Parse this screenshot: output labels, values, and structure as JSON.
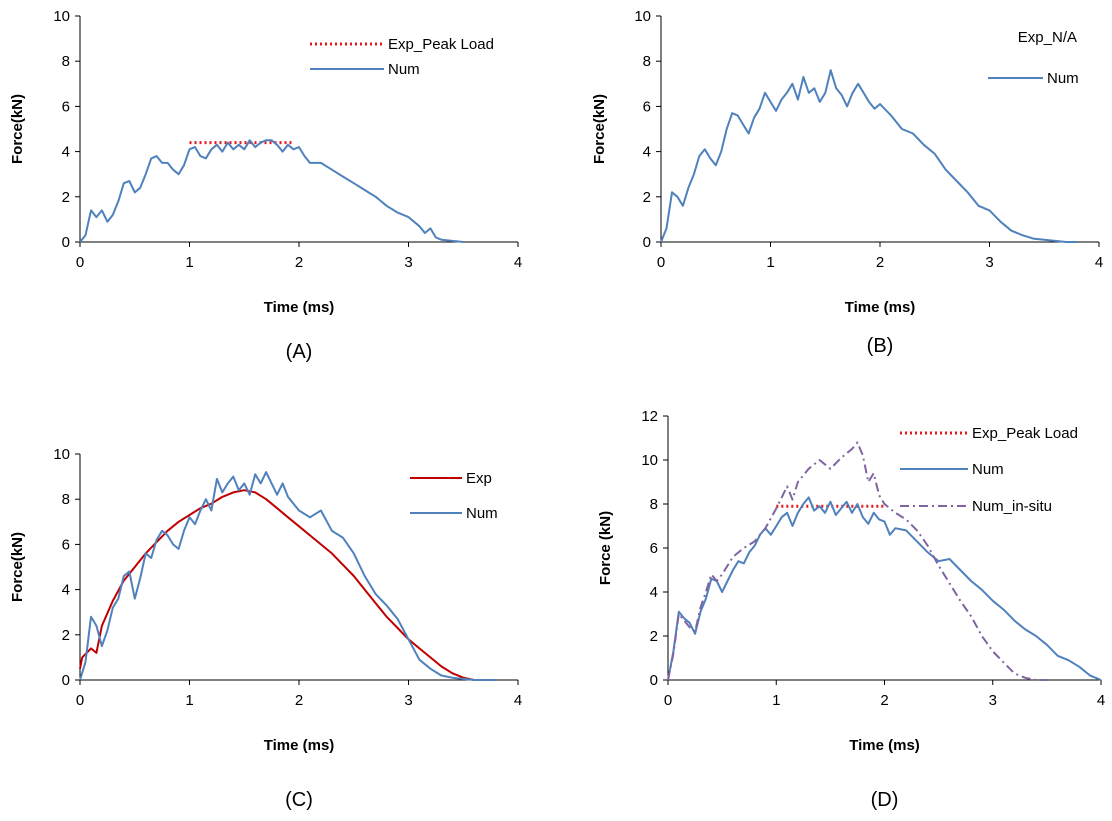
{
  "chart_data": [
    {
      "panel_label": "(A)",
      "type": "line",
      "xlabel": "Time (ms)",
      "ylabel": "Force(kN)",
      "xlim": [
        0,
        4
      ],
      "ylim": [
        0,
        10
      ],
      "xticks": [
        0,
        1,
        2,
        3,
        4
      ],
      "yticks": [
        0,
        2,
        4,
        6,
        8,
        10
      ],
      "legend_position": "top-right",
      "series": [
        {
          "name": "Exp_Peak Load",
          "color": "#e31a1c",
          "style": "dotted",
          "x": [
            1.0,
            1.95
          ],
          "y": [
            4.4,
            4.4
          ]
        },
        {
          "name": "Num",
          "color": "#4f81bd",
          "style": "solid",
          "x": [
            0,
            0.05,
            0.1,
            0.15,
            0.2,
            0.25,
            0.3,
            0.35,
            0.4,
            0.45,
            0.5,
            0.55,
            0.6,
            0.65,
            0.7,
            0.75,
            0.8,
            0.85,
            0.9,
            0.95,
            1.0,
            1.05,
            1.1,
            1.15,
            1.2,
            1.25,
            1.3,
            1.35,
            1.4,
            1.45,
            1.5,
            1.55,
            1.6,
            1.65,
            1.7,
            1.75,
            1.8,
            1.85,
            1.9,
            1.95,
            2.0,
            2.05,
            2.1,
            2.2,
            2.3,
            2.4,
            2.5,
            2.6,
            2.7,
            2.8,
            2.9,
            3.0,
            3.1,
            3.15,
            3.2,
            3.25,
            3.3,
            3.4,
            3.5
          ],
          "y": [
            0,
            0.3,
            1.4,
            1.1,
            1.4,
            0.9,
            1.2,
            1.8,
            2.6,
            2.7,
            2.2,
            2.4,
            3.0,
            3.7,
            3.8,
            3.5,
            3.5,
            3.2,
            3.0,
            3.4,
            4.1,
            4.2,
            3.8,
            3.7,
            4.1,
            4.3,
            4.0,
            4.4,
            4.1,
            4.3,
            4.1,
            4.5,
            4.2,
            4.4,
            4.5,
            4.5,
            4.3,
            4.0,
            4.3,
            4.1,
            4.2,
            3.8,
            3.5,
            3.5,
            3.2,
            2.9,
            2.6,
            2.3,
            2.0,
            1.6,
            1.3,
            1.1,
            0.7,
            0.4,
            0.6,
            0.2,
            0.1,
            0.05,
            0
          ]
        }
      ]
    },
    {
      "panel_label": "(B)",
      "type": "line",
      "xlabel": "Time (ms)",
      "ylabel": "Force(kN)",
      "xlim": [
        0,
        4
      ],
      "ylim": [
        0,
        10
      ],
      "xticks": [
        0,
        1,
        2,
        3,
        4
      ],
      "yticks": [
        0,
        2,
        4,
        6,
        8,
        10
      ],
      "legend_position": "top-right",
      "annotation": "Exp_N/A",
      "series": [
        {
          "name": "Num",
          "color": "#4f81bd",
          "style": "solid",
          "x": [
            0,
            0.05,
            0.1,
            0.15,
            0.2,
            0.25,
            0.3,
            0.35,
            0.4,
            0.45,
            0.5,
            0.55,
            0.6,
            0.65,
            0.7,
            0.75,
            0.8,
            0.85,
            0.9,
            0.95,
            1.0,
            1.05,
            1.1,
            1.15,
            1.2,
            1.25,
            1.3,
            1.35,
            1.4,
            1.45,
            1.5,
            1.55,
            1.6,
            1.65,
            1.7,
            1.75,
            1.8,
            1.85,
            1.9,
            1.95,
            2.0,
            2.1,
            2.2,
            2.3,
            2.4,
            2.5,
            2.6,
            2.7,
            2.8,
            2.9,
            3.0,
            3.1,
            3.2,
            3.3,
            3.4,
            3.5,
            3.6,
            3.7,
            3.8
          ],
          "y": [
            0,
            0.6,
            2.2,
            2.0,
            1.6,
            2.4,
            3.0,
            3.8,
            4.1,
            3.7,
            3.4,
            4.0,
            5.0,
            5.7,
            5.6,
            5.2,
            4.8,
            5.5,
            5.9,
            6.6,
            6.2,
            5.8,
            6.3,
            6.6,
            7.0,
            6.3,
            7.3,
            6.6,
            6.8,
            6.2,
            6.6,
            7.6,
            6.8,
            6.5,
            6.0,
            6.6,
            7.0,
            6.6,
            6.2,
            5.9,
            6.1,
            5.6,
            5.0,
            4.8,
            4.3,
            3.9,
            3.2,
            2.7,
            2.2,
            1.6,
            1.4,
            0.9,
            0.5,
            0.3,
            0.15,
            0.1,
            0.05,
            0,
            0
          ]
        }
      ]
    },
    {
      "panel_label": "(C)",
      "type": "line",
      "xlabel": "Time (ms)",
      "ylabel": "Force(kN)",
      "xlim": [
        0,
        4
      ],
      "ylim": [
        0,
        10
      ],
      "xticks": [
        0,
        1,
        2,
        3,
        4
      ],
      "yticks": [
        0,
        2,
        4,
        6,
        8,
        10
      ],
      "legend_position": "top-right",
      "series": [
        {
          "name": "Exp",
          "color": "#c00000",
          "style": "solid",
          "x": [
            0,
            0.02,
            0.1,
            0.15,
            0.2,
            0.3,
            0.4,
            0.5,
            0.6,
            0.7,
            0.8,
            0.9,
            1.0,
            1.1,
            1.2,
            1.3,
            1.4,
            1.5,
            1.6,
            1.7,
            1.8,
            1.9,
            2.0,
            2.1,
            2.2,
            2.3,
            2.4,
            2.5,
            2.6,
            2.7,
            2.8,
            2.9,
            3.0,
            3.1,
            3.2,
            3.3,
            3.4,
            3.5,
            3.6
          ],
          "y": [
            0.5,
            1.0,
            1.4,
            1.2,
            2.4,
            3.5,
            4.4,
            5.0,
            5.6,
            6.1,
            6.6,
            7.0,
            7.3,
            7.6,
            7.8,
            8.1,
            8.3,
            8.4,
            8.3,
            8.0,
            7.6,
            7.2,
            6.8,
            6.4,
            6.0,
            5.6,
            5.1,
            4.6,
            4.0,
            3.4,
            2.8,
            2.3,
            1.8,
            1.4,
            1.0,
            0.6,
            0.3,
            0.1,
            0
          ]
        },
        {
          "name": "Num",
          "color": "#4f81bd",
          "style": "solid",
          "x": [
            0,
            0.05,
            0.1,
            0.15,
            0.2,
            0.25,
            0.3,
            0.35,
            0.4,
            0.45,
            0.5,
            0.55,
            0.6,
            0.65,
            0.7,
            0.75,
            0.8,
            0.85,
            0.9,
            0.95,
            1.0,
            1.05,
            1.1,
            1.15,
            1.2,
            1.25,
            1.3,
            1.35,
            1.4,
            1.45,
            1.5,
            1.55,
            1.6,
            1.65,
            1.7,
            1.75,
            1.8,
            1.85,
            1.9,
            1.95,
            2.0,
            2.1,
            2.2,
            2.3,
            2.4,
            2.5,
            2.6,
            2.7,
            2.8,
            2.9,
            3.0,
            3.1,
            3.2,
            3.3,
            3.4,
            3.5,
            3.6,
            3.7,
            3.8
          ],
          "y": [
            0,
            0.8,
            2.8,
            2.4,
            1.5,
            2.2,
            3.2,
            3.6,
            4.6,
            4.8,
            3.6,
            4.5,
            5.6,
            5.4,
            6.2,
            6.6,
            6.4,
            6.0,
            5.8,
            6.6,
            7.2,
            6.9,
            7.5,
            8.0,
            7.5,
            8.9,
            8.3,
            8.7,
            9.0,
            8.4,
            8.7,
            8.2,
            9.1,
            8.7,
            9.2,
            8.7,
            8.2,
            8.7,
            8.1,
            7.8,
            7.5,
            7.2,
            7.5,
            6.6,
            6.3,
            5.6,
            4.6,
            3.8,
            3.3,
            2.7,
            1.8,
            0.9,
            0.5,
            0.2,
            0.1,
            0.05,
            0,
            0,
            0
          ]
        }
      ]
    },
    {
      "panel_label": "(D)",
      "type": "line",
      "xlabel": "Time (ms)",
      "ylabel": "Force (kN)",
      "xlim": [
        0,
        4
      ],
      "ylim": [
        0,
        12
      ],
      "xticks": [
        0,
        1,
        2,
        3,
        4
      ],
      "yticks": [
        0,
        2,
        4,
        6,
        8,
        10,
        12
      ],
      "legend_position": "top-right",
      "series": [
        {
          "name": "Exp_Peak Load",
          "color": "#e31a1c",
          "style": "dotted",
          "x": [
            1.0,
            2.0
          ],
          "y": [
            7.9,
            7.9
          ]
        },
        {
          "name": "Num",
          "color": "#4f81bd",
          "style": "solid",
          "x": [
            0,
            0.05,
            0.1,
            0.15,
            0.2,
            0.25,
            0.3,
            0.35,
            0.4,
            0.45,
            0.5,
            0.55,
            0.6,
            0.65,
            0.7,
            0.75,
            0.8,
            0.85,
            0.9,
            0.95,
            1.0,
            1.05,
            1.1,
            1.15,
            1.2,
            1.25,
            1.3,
            1.35,
            1.4,
            1.45,
            1.5,
            1.55,
            1.6,
            1.65,
            1.7,
            1.75,
            1.8,
            1.85,
            1.9,
            1.95,
            2.0,
            2.05,
            2.1,
            2.2,
            2.3,
            2.4,
            2.5,
            2.6,
            2.7,
            2.8,
            2.9,
            3.0,
            3.1,
            3.2,
            3.3,
            3.4,
            3.5,
            3.6,
            3.7,
            3.8,
            3.9,
            4.0
          ],
          "y": [
            0,
            1.3,
            3.1,
            2.8,
            2.6,
            2.1,
            3.1,
            3.7,
            4.6,
            4.5,
            4.0,
            4.5,
            5.0,
            5.4,
            5.3,
            5.8,
            6.1,
            6.6,
            6.9,
            6.6,
            7.0,
            7.4,
            7.6,
            7.0,
            7.6,
            8.0,
            8.3,
            7.7,
            7.9,
            7.6,
            8.1,
            7.5,
            7.8,
            8.1,
            7.6,
            8.0,
            7.4,
            7.1,
            7.6,
            7.3,
            7.2,
            6.6,
            6.9,
            6.8,
            6.3,
            5.8,
            5.4,
            5.5,
            5.0,
            4.5,
            4.1,
            3.6,
            3.2,
            2.7,
            2.3,
            2.0,
            1.6,
            1.1,
            0.9,
            0.6,
            0.2,
            0
          ]
        },
        {
          "name": "Num_in-situ",
          "color": "#8064a2",
          "style": "dashdot",
          "x": [
            0,
            0.05,
            0.1,
            0.15,
            0.2,
            0.25,
            0.3,
            0.35,
            0.4,
            0.45,
            0.5,
            0.6,
            0.7,
            0.8,
            0.9,
            1.0,
            1.05,
            1.1,
            1.15,
            1.2,
            1.3,
            1.4,
            1.5,
            1.6,
            1.7,
            1.75,
            1.8,
            1.85,
            1.9,
            1.95,
            2.0,
            2.1,
            2.2,
            2.3,
            2.4,
            2.5,
            2.6,
            2.7,
            2.8,
            2.9,
            3.0,
            3.1,
            3.2,
            3.3,
            3.4,
            3.5
          ],
          "y": [
            0,
            1.2,
            3.0,
            2.7,
            2.4,
            2.2,
            3.3,
            4.0,
            4.8,
            4.5,
            4.8,
            5.6,
            6.0,
            6.3,
            6.9,
            7.8,
            8.3,
            8.8,
            8.2,
            9.0,
            9.6,
            10.0,
            9.6,
            10.1,
            10.5,
            10.8,
            10.2,
            9.0,
            9.4,
            8.4,
            8.0,
            7.6,
            7.3,
            6.8,
            6.1,
            5.2,
            4.4,
            3.6,
            2.9,
            2.0,
            1.3,
            0.8,
            0.3,
            0.1,
            0,
            0
          ]
        }
      ]
    }
  ]
}
